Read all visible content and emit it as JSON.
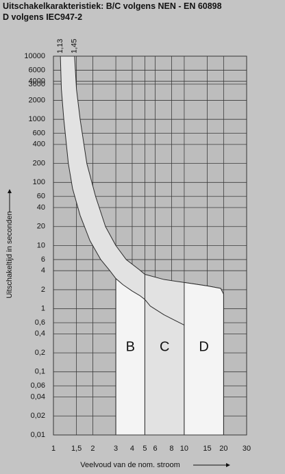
{
  "chart_data": {
    "type": "area",
    "title": "Uitschakelkarakteristiek: B/C volgens NEN - EN 60898",
    "subtitle": "D volgens IEC947-2",
    "x_label": "Veelvoud van de nom. stroom",
    "y_label": "Uitschakeltijd in seconden",
    "xscale": "log",
    "yscale": "log",
    "grid": true,
    "xlim": [
      1,
      30
    ],
    "ylim": [
      0.01,
      10000
    ],
    "xticks": [
      1,
      {
        "value": 1.5,
        "label": "1,5"
      },
      2,
      3,
      4,
      5,
      6,
      8,
      10,
      15,
      20,
      30
    ],
    "yticks": [
      10000,
      6000,
      4000,
      3600,
      2000,
      1000,
      600,
      400,
      200,
      100,
      60,
      40,
      20,
      10,
      6,
      4,
      2,
      1,
      {
        "value": 0.6,
        "label": "0,6"
      },
      {
        "value": 0.4,
        "label": "0,4"
      },
      {
        "value": 0.2,
        "label": "0,2"
      },
      {
        "value": 0.1,
        "label": "0,1"
      },
      {
        "value": 0.06,
        "label": "0,06"
      },
      {
        "value": 0.04,
        "label": "0,04"
      },
      {
        "value": 0.02,
        "label": "0,02"
      },
      {
        "value": 0.01,
        "label": "0,01"
      }
    ],
    "top_labels": [
      {
        "value": 1.13,
        "label": "1,13"
      },
      {
        "value": 1.45,
        "label": "1,45"
      }
    ],
    "series": [
      {
        "color": "#e2e2e2",
        "x": [
          1.45,
          1.5,
          1.6,
          1.8,
          2.1,
          2.5,
          3,
          3.6,
          4.5,
          5,
          7,
          10,
          15,
          19,
          20,
          20,
          3,
          3,
          2.7,
          2.3,
          1.9,
          1.6,
          1.4,
          1.3,
          1.2,
          1.15,
          1.13
        ],
        "values": [
          10000,
          3000,
          1000,
          200,
          60,
          20,
          10,
          6,
          4.2,
          3.5,
          2.9,
          2.6,
          2.3,
          2.1,
          1.7,
          0.01,
          0.01,
          3,
          4,
          6,
          12,
          30,
          80,
          200,
          1000,
          3000,
          10000
        ]
      },
      {
        "name": "B",
        "color": "#f4f4f4",
        "x": [
          3,
          3.4,
          4,
          4.6,
          5,
          5,
          3
        ],
        "values": [
          3,
          2.4,
          1.9,
          1.6,
          1.4,
          0.01,
          0.01
        ]
      },
      {
        "name": "C",
        "color": "#e2e2e2",
        "x": [
          5,
          5.5,
          7,
          10,
          10,
          5
        ],
        "values": [
          1.4,
          1.1,
          0.8,
          0.55,
          0.01,
          0.01
        ]
      },
      {
        "name": "D",
        "color": "#f4f4f4",
        "x": [
          10,
          15,
          19,
          20,
          20,
          10
        ],
        "values": [
          2.6,
          2.3,
          2.1,
          1.7,
          0.01,
          0.01
        ]
      },
      {
        "x": [
          5,
          5
        ],
        "values": [
          3.5,
          1.4
        ]
      }
    ]
  }
}
